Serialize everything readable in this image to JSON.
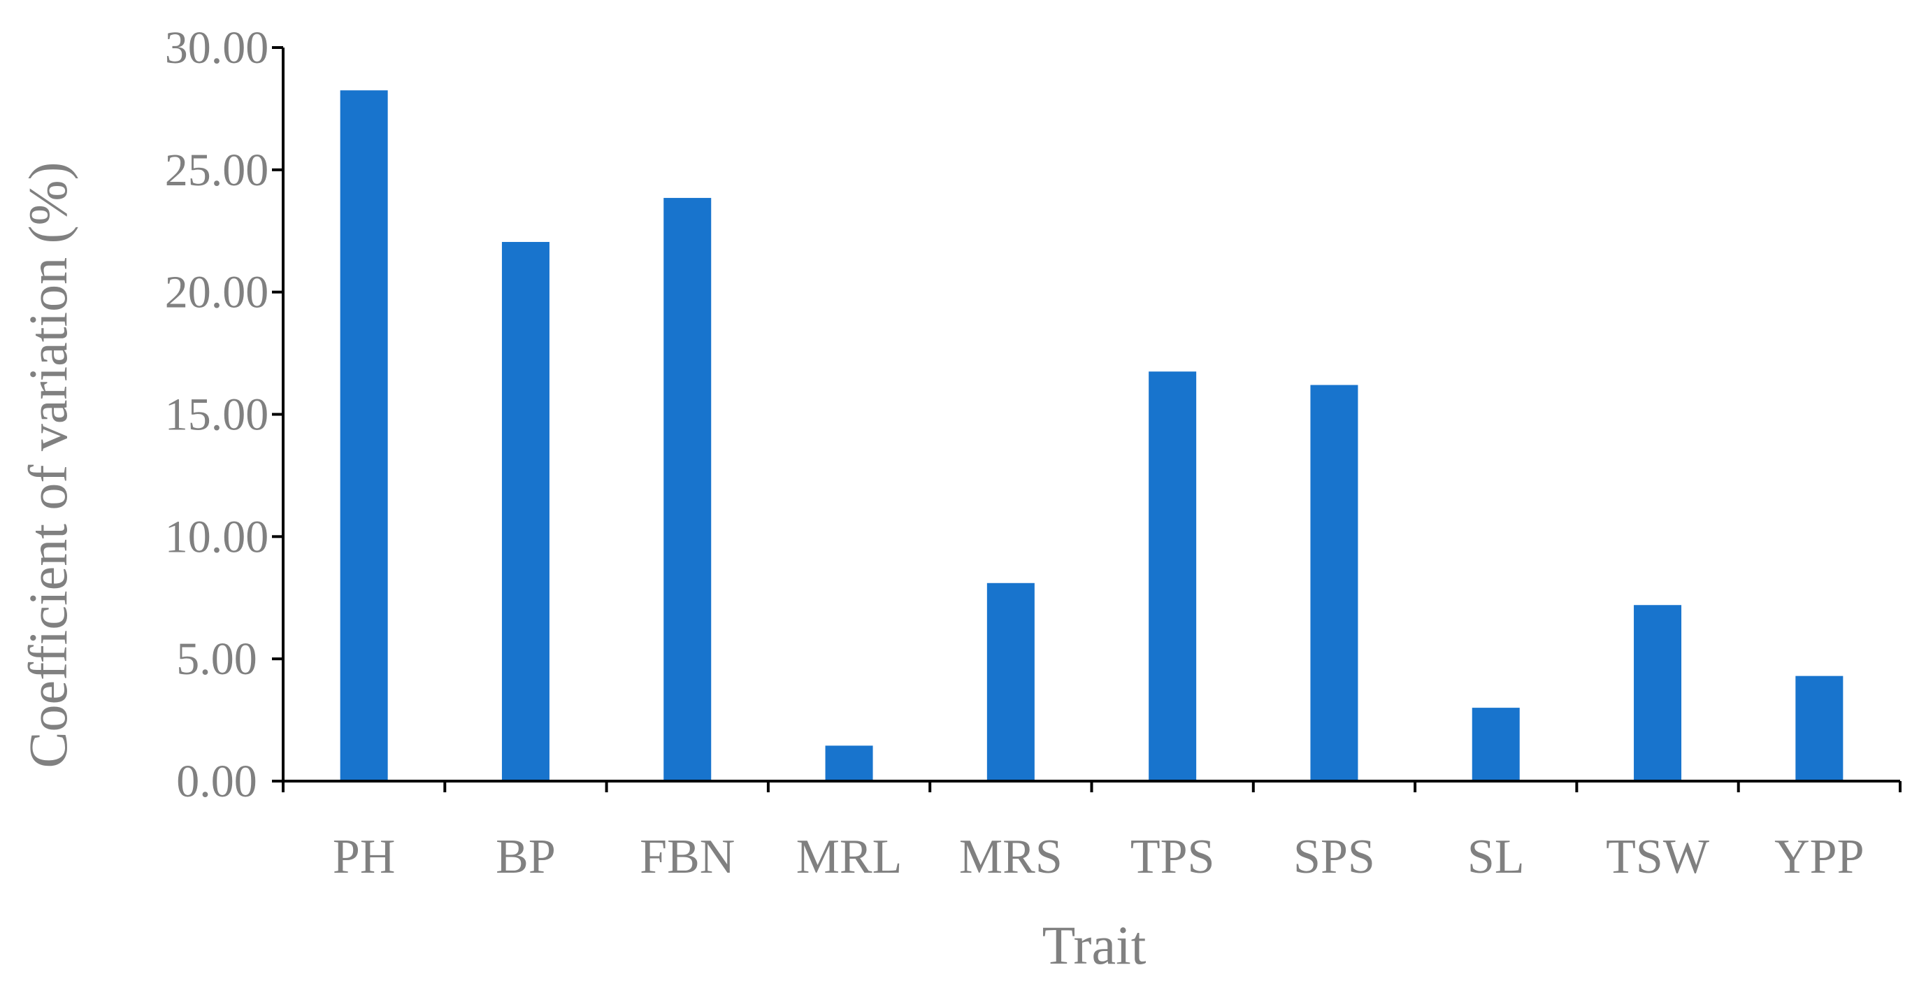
{
  "chart_data": {
    "type": "bar",
    "title": "",
    "xlabel": "Trait",
    "ylabel": "Coefficient of variation (%)",
    "categories": [
      "PH",
      "BP",
      "FBN",
      "MRL",
      "MRS",
      "TPS",
      "SPS",
      "SL",
      "TSW",
      "YPP"
    ],
    "values": [
      28.25,
      22.05,
      23.85,
      1.45,
      8.1,
      16.75,
      16.2,
      3.0,
      7.2,
      4.3
    ],
    "ylim": [
      0,
      30
    ],
    "yticks": [
      "0.00",
      "5.00",
      "10.00",
      "15.00",
      "20.00",
      "25.00",
      "30.00"
    ],
    "ytick_values": [
      0,
      5,
      10,
      15,
      20,
      25,
      30
    ],
    "grid": false,
    "legend": "none",
    "bar_color": "#1874CD",
    "axis_color": "#000000",
    "text_color": "#808080"
  }
}
